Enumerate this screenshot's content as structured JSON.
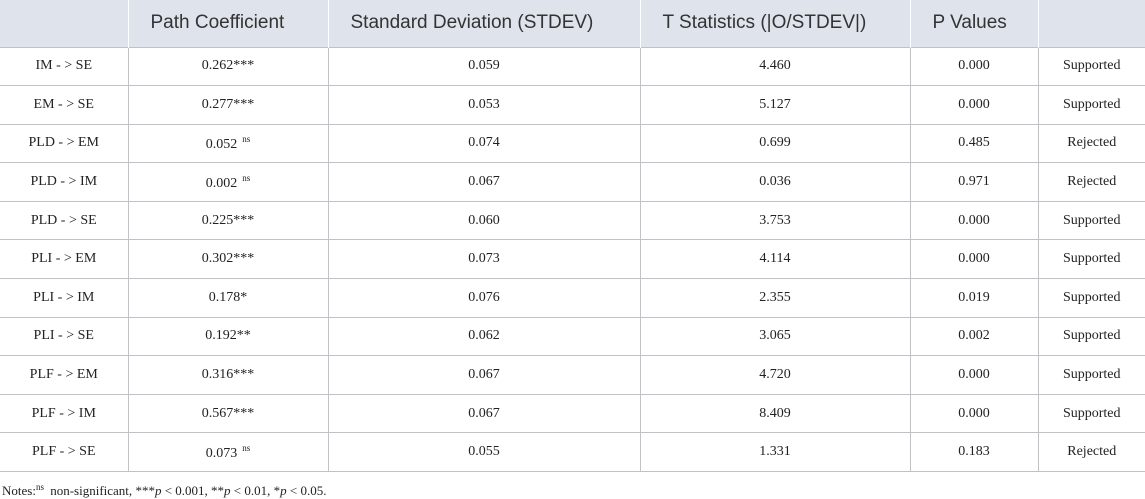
{
  "table": {
    "headers": [
      "",
      "Path Coefficient",
      "Standard Deviation (STDEV)",
      "T Statistics (|O/STDEV|)",
      "P Values",
      ""
    ],
    "rows": [
      {
        "path": "IM - > SE",
        "coef": "0.262***",
        "coef_sup": "",
        "stdev": "0.059",
        "t": "4.460",
        "p": "0.000",
        "result": "Supported"
      },
      {
        "path": "EM - > SE",
        "coef": "0.277***",
        "coef_sup": "",
        "stdev": "0.053",
        "t": "5.127",
        "p": "0.000",
        "result": "Supported"
      },
      {
        "path": "PLD - > EM",
        "coef": "0.052",
        "coef_sup": "ns",
        "stdev": "0.074",
        "t": "0.699",
        "p": "0.485",
        "result": "Rejected"
      },
      {
        "path": "PLD - > IM",
        "coef": "0.002",
        "coef_sup": "ns",
        "stdev": "0.067",
        "t": "0.036",
        "p": "0.971",
        "result": "Rejected"
      },
      {
        "path": "PLD - > SE",
        "coef": "0.225***",
        "coef_sup": "",
        "stdev": "0.060",
        "t": "3.753",
        "p": "0.000",
        "result": "Supported"
      },
      {
        "path": "PLI - > EM",
        "coef": "0.302***",
        "coef_sup": "",
        "stdev": "0.073",
        "t": "4.114",
        "p": "0.000",
        "result": "Supported"
      },
      {
        "path": "PLI - > IM",
        "coef": "0.178*",
        "coef_sup": "",
        "stdev": "0.076",
        "t": "2.355",
        "p": "0.019",
        "result": "Supported"
      },
      {
        "path": "PLI - > SE",
        "coef": "0.192**",
        "coef_sup": "",
        "stdev": "0.062",
        "t": "3.065",
        "p": "0.002",
        "result": "Supported"
      },
      {
        "path": "PLF - > EM",
        "coef": "0.316***",
        "coef_sup": "",
        "stdev": "0.067",
        "t": "4.720",
        "p": "0.000",
        "result": "Supported"
      },
      {
        "path": "PLF - > IM",
        "coef": "0.567***",
        "coef_sup": "",
        "stdev": "0.067",
        "t": "8.409",
        "p": "0.000",
        "result": "Supported"
      },
      {
        "path": "PLF - > SE",
        "coef": "0.073",
        "coef_sup": "ns",
        "stdev": "0.055",
        "t": "1.331",
        "p": "0.183",
        "result": "Rejected"
      }
    ]
  },
  "notes": {
    "prefix": "Notes:",
    "ns_sup": "ns",
    "ns_text": " non-significant, ",
    "s3": "***",
    "s3_text": " < 0.001, ",
    "s2": "**",
    "s2_text": " < 0.01, ",
    "s1": "*",
    "s1_text": " < 0.05.",
    "p_letter": "p"
  }
}
